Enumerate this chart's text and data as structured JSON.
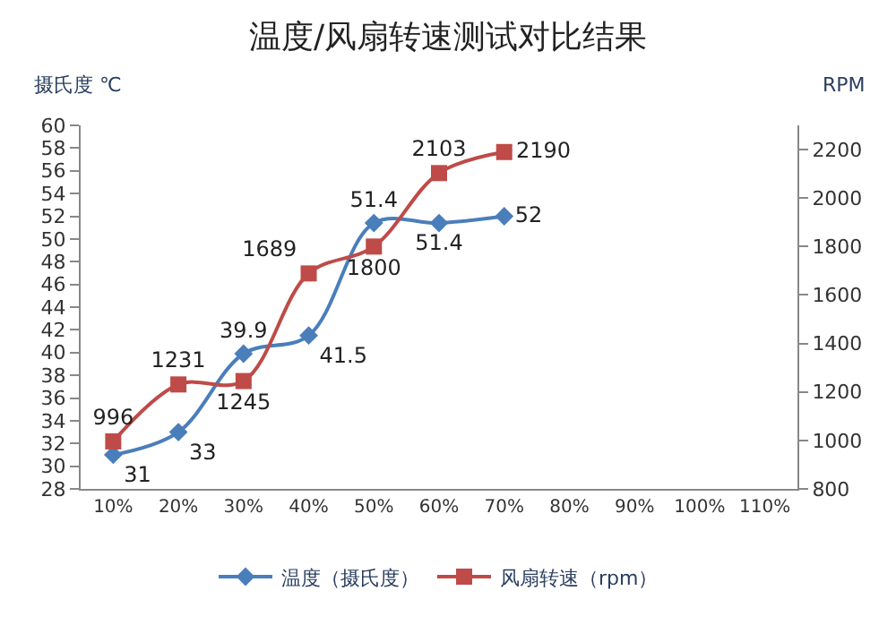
{
  "chart_data": {
    "type": "line",
    "title": "温度/风扇转速测试对比结果",
    "ylabel": "摄氏度 ℃",
    "y2label": "RPM",
    "categories": [
      "10%",
      "20%",
      "30%",
      "40%",
      "50%",
      "60%",
      "70%",
      "80%",
      "90%",
      "100%",
      "110%"
    ],
    "series": [
      {
        "name": "温度（摄氏度）",
        "color": "#4a7ebb",
        "marker": "diamond",
        "values": [
          31,
          33,
          39.9,
          41.5,
          51.4,
          51.4,
          52,
          null,
          null,
          null,
          null
        ]
      },
      {
        "name": "风扇转速（rpm）",
        "color": "#be4b48",
        "marker": "square",
        "axis": "y2",
        "values": [
          996,
          1231,
          1245,
          1689,
          1800,
          2103,
          2190,
          null,
          null,
          null,
          null
        ]
      }
    ],
    "ylim": [
      28,
      60
    ],
    "yticks": [
      28,
      30,
      32,
      34,
      36,
      38,
      40,
      42,
      44,
      46,
      48,
      50,
      52,
      54,
      56,
      58,
      60
    ],
    "y2lim": [
      800,
      2300
    ],
    "y2ticks": [
      800,
      1000,
      1200,
      1400,
      1600,
      1800,
      2000,
      2200
    ],
    "data_labels": true,
    "legend": "bottom"
  }
}
